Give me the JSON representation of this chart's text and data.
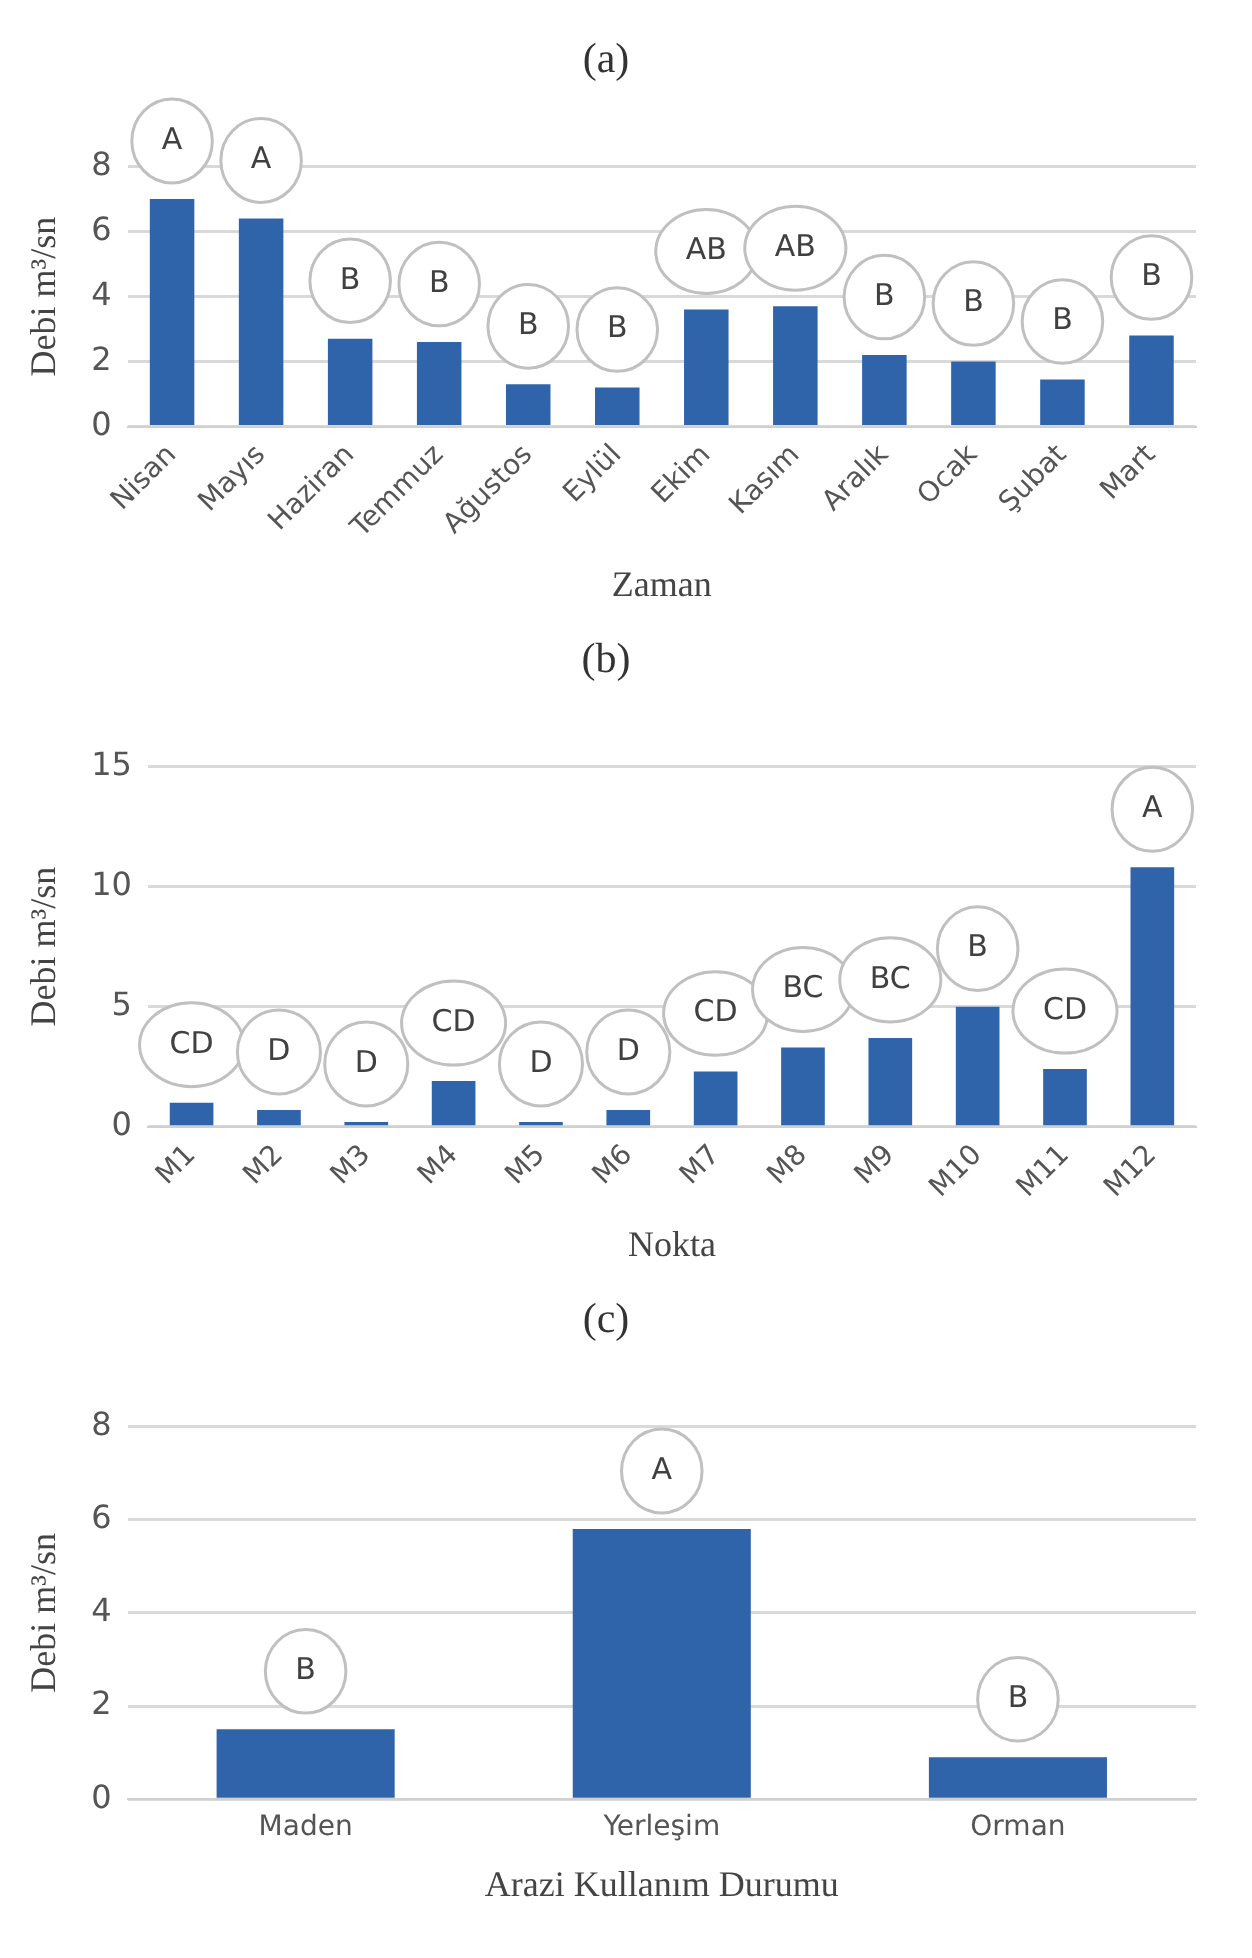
{
  "chart_data": [
    {
      "type": "bar",
      "title": "(a)",
      "xlabel": "Zaman",
      "ylabel": "Debi m³/sn",
      "categories": [
        "Nisan",
        "Mayıs",
        "Haziran",
        "Temmuz",
        "Ağustos",
        "Eylül",
        "Ekim",
        "Kasım",
        "Aralık",
        "Ocak",
        "Şubat",
        "Mart"
      ],
      "values": [
        7.0,
        6.4,
        2.7,
        2.6,
        1.3,
        1.2,
        3.6,
        3.7,
        2.2,
        2.0,
        1.45,
        2.8
      ],
      "color": "#2f64ab",
      "ylim": [
        0,
        8
      ],
      "yticks": [
        0,
        2,
        4,
        6,
        8
      ],
      "grid": "y",
      "annotations": [
        {
          "text": "A",
          "x": "Nisan",
          "y": 7.0
        },
        {
          "text": "A",
          "x": "Mayıs",
          "y": 6.4
        },
        {
          "text": "B",
          "x": "Haziran",
          "y": 2.7
        },
        {
          "text": "B",
          "x": "Temmuz",
          "y": 2.6
        },
        {
          "text": "B",
          "x": "Ağustos",
          "y": 1.3
        },
        {
          "text": "B",
          "x": "Eylül",
          "y": 1.2
        },
        {
          "text": "AB",
          "x": "Ekim",
          "y": 3.6
        },
        {
          "text": "AB",
          "x": "Kasım",
          "y": 3.7
        },
        {
          "text": "B",
          "x": "Aralık",
          "y": 2.2
        },
        {
          "text": "B",
          "x": "Ocak",
          "y": 2.0
        },
        {
          "text": "B",
          "x": "Şubat",
          "y": 1.45
        },
        {
          "text": "B",
          "x": "Mart",
          "y": 2.8
        }
      ]
    },
    {
      "type": "bar",
      "title": "(b)",
      "xlabel": "Nokta",
      "ylabel": "Debi m³/sn",
      "categories": [
        "M1",
        "M2",
        "M3",
        "M4",
        "M5",
        "M6",
        "M7",
        "M8",
        "M9",
        "M10",
        "M11",
        "M12"
      ],
      "values": [
        1.0,
        0.7,
        0.2,
        1.9,
        0.2,
        0.7,
        2.3,
        3.3,
        3.7,
        5.0,
        2.4,
        10.8
      ],
      "color": "#2f64ab",
      "ylim": [
        0,
        15
      ],
      "yticks": [
        0,
        5,
        10,
        15
      ],
      "grid": "y",
      "annotations": [
        {
          "text": "CD",
          "x": "M1",
          "y": 1.0
        },
        {
          "text": "D",
          "x": "M2",
          "y": 0.7
        },
        {
          "text": "D",
          "x": "M3",
          "y": 0.2
        },
        {
          "text": "CD",
          "x": "M4",
          "y": 1.9
        },
        {
          "text": "D",
          "x": "M5",
          "y": 0.2
        },
        {
          "text": "D",
          "x": "M6",
          "y": 0.7
        },
        {
          "text": "CD",
          "x": "M7",
          "y": 2.3
        },
        {
          "text": "BC",
          "x": "M8",
          "y": 3.3
        },
        {
          "text": "BC",
          "x": "M9",
          "y": 3.7
        },
        {
          "text": "B",
          "x": "M10",
          "y": 5.0
        },
        {
          "text": "CD",
          "x": "M11",
          "y": 2.4
        },
        {
          "text": "A",
          "x": "M12",
          "y": 10.8
        }
      ]
    },
    {
      "type": "bar",
      "title": "(c)",
      "xlabel": "Arazi Kullanım Durumu",
      "ylabel": "Debi m³/sn",
      "categories": [
        "Maden",
        "Yerleşim",
        "Orman"
      ],
      "values": [
        1.5,
        5.8,
        0.9
      ],
      "color": "#2f64ab",
      "ylim": [
        0,
        8
      ],
      "yticks": [
        0,
        2,
        4,
        6,
        8
      ],
      "grid": "y",
      "annotations": [
        {
          "text": "B",
          "x": "Maden",
          "y": 1.5
        },
        {
          "text": "A",
          "x": "Yerleşim",
          "y": 5.8
        },
        {
          "text": "B",
          "x": "Orman",
          "y": 0.9
        }
      ]
    }
  ]
}
